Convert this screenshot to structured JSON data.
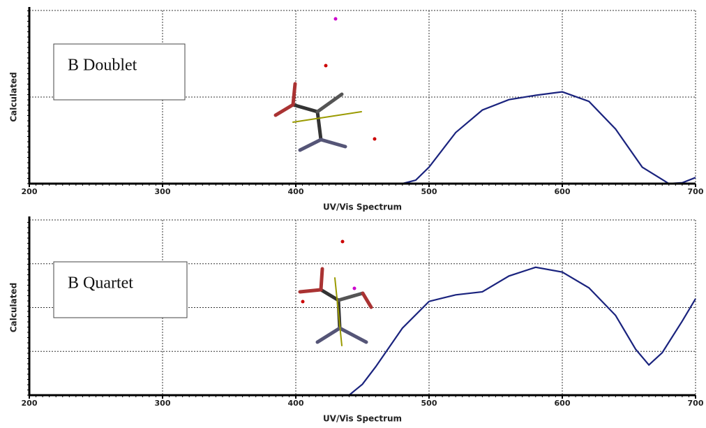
{
  "chart_data": [
    {
      "type": "line",
      "annotation": "B Doublet",
      "xlabel": "UV/Vis Spectrum",
      "ylabel": "Calculated",
      "x": [
        200,
        300,
        400,
        480,
        490,
        500,
        520,
        540,
        560,
        580,
        600,
        620,
        640,
        660,
        680,
        690,
        700
      ],
      "values": [
        0,
        0,
        0,
        0,
        0.04,
        0.19,
        0.59,
        0.85,
        0.97,
        1.02,
        1.06,
        0.95,
        0.63,
        0.19,
        0,
        0.01,
        0.07
      ],
      "color": "#1a237e",
      "xlim": [
        200,
        700
      ],
      "xticks": [
        200,
        300,
        400,
        500,
        600,
        700
      ],
      "ylim": [
        0,
        2
      ],
      "ygrid": [
        1
      ],
      "grid": true
    },
    {
      "type": "line",
      "annotation": "B Quartet",
      "xlabel": "UV/Vis Spectrum",
      "ylabel": "Calculated",
      "x": [
        200,
        300,
        400,
        440,
        450,
        460,
        480,
        500,
        520,
        540,
        560,
        580,
        600,
        620,
        640,
        655,
        665,
        675,
        690,
        700
      ],
      "values": [
        0,
        0,
        0,
        0,
        0.25,
        0.65,
        1.53,
        2.14,
        2.29,
        2.36,
        2.72,
        2.92,
        2.81,
        2.45,
        1.82,
        1.05,
        0.69,
        0.97,
        1.69,
        2.2
      ],
      "color": "#1a237e",
      "xlim": [
        200,
        700
      ],
      "xticks": [
        200,
        300,
        400,
        500,
        600,
        700
      ],
      "ylim": [
        0,
        4
      ],
      "ygrid": [
        1,
        2,
        3
      ],
      "grid": true
    }
  ]
}
